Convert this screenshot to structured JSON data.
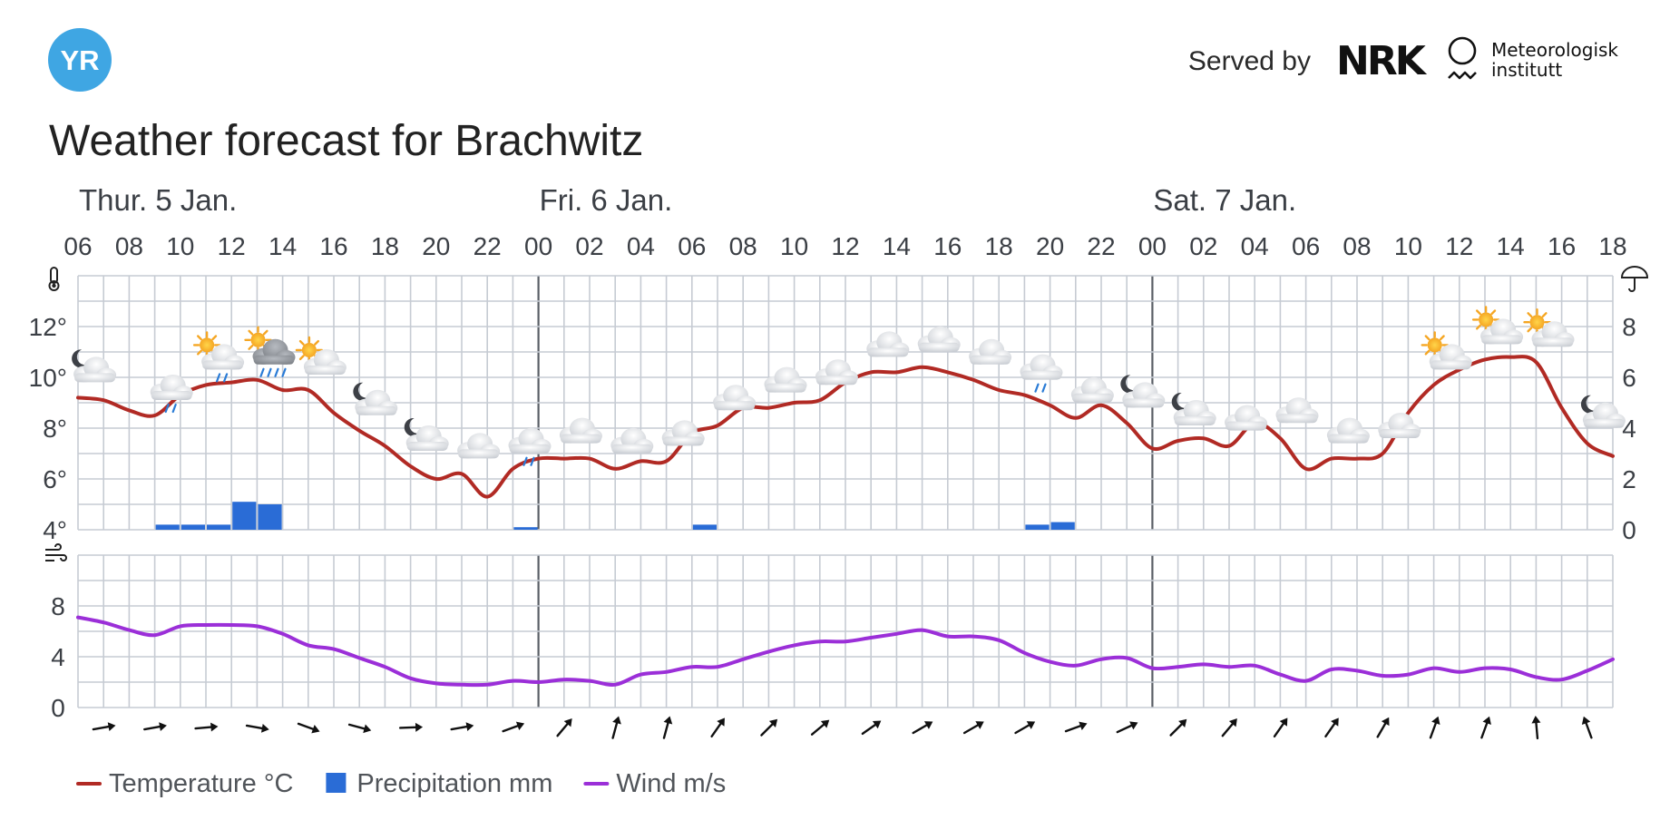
{
  "header": {
    "logo_text": "YR",
    "served_by": "Served by",
    "nrk_logo_text": "NRK",
    "met_line1": "Meteorologisk",
    "met_line2": "institutt",
    "title": "Weather forecast for Brachwitz"
  },
  "colors": {
    "logo_bg": "#3fa6e3",
    "temperature": "#b12a24",
    "precipitation": "#2a6cd6",
    "wind": "#9b2fd8",
    "grid": "#c6cbd3",
    "day_divider": "#5a5f66"
  },
  "days": [
    {
      "label": "Thur. 5 Jan.",
      "start_hour_index": 0
    },
    {
      "label": "Fri. 6 Jan.",
      "start_hour_index": 18
    },
    {
      "label": "Sat. 7 Jan.",
      "start_hour_index": 42
    }
  ],
  "icons": {
    "temperature_axis": "thermometer-icon",
    "precipitation_axis": "umbrella-icon",
    "wind_axis": "wind-icon"
  },
  "legend": [
    {
      "label": "Temperature °C",
      "kind": "line",
      "color": "#b12a24"
    },
    {
      "label": "Precipitation mm",
      "kind": "box",
      "color": "#2a6cd6"
    },
    {
      "label": "Wind m/s",
      "kind": "line",
      "color": "#9b2fd8"
    }
  ],
  "chart_data": [
    {
      "type": "line",
      "name": "temperature",
      "xlabel": "",
      "ylabel": "",
      "x_tick_labels": [
        "06",
        "08",
        "10",
        "12",
        "14",
        "16",
        "18",
        "20",
        "22",
        "00",
        "02",
        "04",
        "06",
        "08",
        "10",
        "12",
        "14",
        "16",
        "18",
        "20",
        "22",
        "00",
        "02",
        "04",
        "06",
        "08",
        "10",
        "12",
        "14",
        "16",
        "18"
      ],
      "hours": [
        "06",
        "07",
        "08",
        "09",
        "10",
        "11",
        "12",
        "13",
        "14",
        "15",
        "16",
        "17",
        "18",
        "19",
        "20",
        "21",
        "22",
        "23",
        "00",
        "01",
        "02",
        "03",
        "04",
        "05",
        "06",
        "07",
        "08",
        "09",
        "10",
        "11",
        "12",
        "13",
        "14",
        "15",
        "16",
        "17",
        "18",
        "19",
        "20",
        "21",
        "22",
        "23",
        "00",
        "01",
        "02",
        "03",
        "04",
        "05",
        "06",
        "07",
        "08",
        "09",
        "10",
        "11",
        "12",
        "13",
        "14",
        "15",
        "16",
        "17",
        "18"
      ],
      "y_ticks": [
        "4°",
        "6°",
        "8°",
        "10°",
        "12°"
      ],
      "y_tick_values": [
        4,
        6,
        8,
        10,
        12
      ],
      "ylim": [
        4,
        14
      ],
      "values": [
        9.2,
        9.1,
        8.7,
        8.5,
        9.3,
        9.7,
        9.8,
        9.9,
        9.5,
        9.5,
        8.6,
        7.9,
        7.3,
        6.5,
        6.0,
        6.2,
        5.3,
        6.4,
        6.8,
        6.8,
        6.8,
        6.4,
        6.7,
        6.7,
        7.8,
        8.1,
        8.8,
        8.8,
        9.0,
        9.1,
        9.8,
        10.2,
        10.2,
        10.4,
        10.2,
        9.9,
        9.5,
        9.3,
        8.9,
        8.4,
        8.9,
        8.2,
        7.2,
        7.5,
        7.6,
        7.3,
        8.2,
        7.6,
        6.4,
        6.8,
        6.8,
        7.0,
        8.6,
        9.7,
        10.3,
        10.7,
        10.8,
        10.6,
        8.8,
        7.4,
        6.9
      ],
      "grid": true
    },
    {
      "type": "bar",
      "name": "precipitation",
      "y_ticks": [
        "0",
        "2",
        "4",
        "6",
        "8"
      ],
      "y_tick_values": [
        0,
        2,
        4,
        6,
        8
      ],
      "ylim": [
        0,
        10
      ],
      "values": [
        0,
        0,
        0,
        0.2,
        0.2,
        0.2,
        1.1,
        1.0,
        0,
        0,
        0,
        0,
        0,
        0,
        0,
        0,
        0,
        0.1,
        0,
        0,
        0,
        0,
        0,
        0,
        0.2,
        0,
        0,
        0,
        0,
        0,
        0,
        0,
        0,
        0,
        0,
        0,
        0,
        0.2,
        0.3,
        0,
        0,
        0,
        0,
        0,
        0,
        0,
        0,
        0,
        0,
        0,
        0,
        0,
        0,
        0,
        0,
        0,
        0,
        0,
        0,
        0
      ],
      "grid": true
    },
    {
      "type": "line",
      "name": "wind",
      "y_ticks": [
        "0",
        "4",
        "8"
      ],
      "y_tick_values": [
        0,
        4,
        8
      ],
      "ylim": [
        0,
        12
      ],
      "values": [
        7.1,
        6.7,
        6.1,
        5.7,
        6.4,
        6.5,
        6.5,
        6.4,
        5.8,
        4.9,
        4.6,
        3.9,
        3.2,
        2.3,
        1.9,
        1.8,
        1.8,
        2.1,
        2.0,
        2.2,
        2.1,
        1.8,
        2.6,
        2.8,
        3.2,
        3.2,
        3.8,
        4.4,
        4.9,
        5.2,
        5.2,
        5.5,
        5.8,
        6.1,
        5.6,
        5.6,
        5.3,
        4.3,
        3.6,
        3.3,
        3.8,
        3.9,
        3.1,
        3.2,
        3.4,
        3.2,
        3.3,
        2.6,
        2.1,
        3.0,
        2.9,
        2.5,
        2.6,
        3.1,
        2.8,
        3.1,
        3.0,
        2.4,
        2.2,
        2.9,
        3.8
      ],
      "grid": true
    }
  ],
  "forecast_symbols": [
    {
      "hour_index": 0,
      "icon": "partly-cloudy-night-icon"
    },
    {
      "hour_index": 3,
      "icon": "cloud-light-rain-icon"
    },
    {
      "hour_index": 5,
      "icon": "sun-cloud-rain-icon"
    },
    {
      "hour_index": 7,
      "icon": "sun-dark-cloud-heavy-rain-icon"
    },
    {
      "hour_index": 9,
      "icon": "partly-cloudy-day-icon"
    },
    {
      "hour_index": 11,
      "icon": "partly-cloudy-night-icon"
    },
    {
      "hour_index": 13,
      "icon": "partly-cloudy-night-icon"
    },
    {
      "hour_index": 15,
      "icon": "cloud-icon"
    },
    {
      "hour_index": 17,
      "icon": "cloud-light-rain-icon"
    },
    {
      "hour_index": 19,
      "icon": "cloud-icon"
    },
    {
      "hour_index": 21,
      "icon": "cloud-icon"
    },
    {
      "hour_index": 23,
      "icon": "cloud-icon"
    },
    {
      "hour_index": 25,
      "icon": "cloud-icon"
    },
    {
      "hour_index": 27,
      "icon": "cloud-icon"
    },
    {
      "hour_index": 29,
      "icon": "cloud-icon"
    },
    {
      "hour_index": 31,
      "icon": "cloud-icon"
    },
    {
      "hour_index": 33,
      "icon": "cloud-icon"
    },
    {
      "hour_index": 35,
      "icon": "cloud-icon"
    },
    {
      "hour_index": 37,
      "icon": "cloud-light-rain-icon"
    },
    {
      "hour_index": 39,
      "icon": "cloud-icon"
    },
    {
      "hour_index": 41,
      "icon": "partly-cloudy-night-icon"
    },
    {
      "hour_index": 43,
      "icon": "partly-cloudy-night-icon"
    },
    {
      "hour_index": 45,
      "icon": "cloud-icon"
    },
    {
      "hour_index": 47,
      "icon": "cloud-icon"
    },
    {
      "hour_index": 49,
      "icon": "cloud-icon"
    },
    {
      "hour_index": 51,
      "icon": "cloud-icon"
    },
    {
      "hour_index": 53,
      "icon": "partly-cloudy-day-icon"
    },
    {
      "hour_index": 55,
      "icon": "partly-cloudy-day-icon"
    },
    {
      "hour_index": 57,
      "icon": "partly-cloudy-day-icon"
    },
    {
      "hour_index": 59,
      "icon": "partly-cloudy-night-icon"
    }
  ],
  "wind_directions": [
    {
      "hour_index": 1,
      "angle": 80
    },
    {
      "hour_index": 3,
      "angle": 80
    },
    {
      "hour_index": 5,
      "angle": 85
    },
    {
      "hour_index": 7,
      "angle": 100
    },
    {
      "hour_index": 9,
      "angle": 110
    },
    {
      "hour_index": 11,
      "angle": 105
    },
    {
      "hour_index": 13,
      "angle": 88
    },
    {
      "hour_index": 15,
      "angle": 80
    },
    {
      "hour_index": 17,
      "angle": 70
    },
    {
      "hour_index": 19,
      "angle": 40
    },
    {
      "hour_index": 21,
      "angle": 15
    },
    {
      "hour_index": 23,
      "angle": 15
    },
    {
      "hour_index": 25,
      "angle": 35
    },
    {
      "hour_index": 27,
      "angle": 45
    },
    {
      "hour_index": 29,
      "angle": 50
    },
    {
      "hour_index": 31,
      "angle": 55
    },
    {
      "hour_index": 33,
      "angle": 60
    },
    {
      "hour_index": 35,
      "angle": 60
    },
    {
      "hour_index": 37,
      "angle": 60
    },
    {
      "hour_index": 39,
      "angle": 70
    },
    {
      "hour_index": 41,
      "angle": 65
    },
    {
      "hour_index": 43,
      "angle": 45
    },
    {
      "hour_index": 45,
      "angle": 40
    },
    {
      "hour_index": 47,
      "angle": 35
    },
    {
      "hour_index": 49,
      "angle": 35
    },
    {
      "hour_index": 51,
      "angle": 30
    },
    {
      "hour_index": 53,
      "angle": 20
    },
    {
      "hour_index": 55,
      "angle": 20
    },
    {
      "hour_index": 57,
      "angle": -5
    },
    {
      "hour_index": 59,
      "angle": -20
    }
  ]
}
